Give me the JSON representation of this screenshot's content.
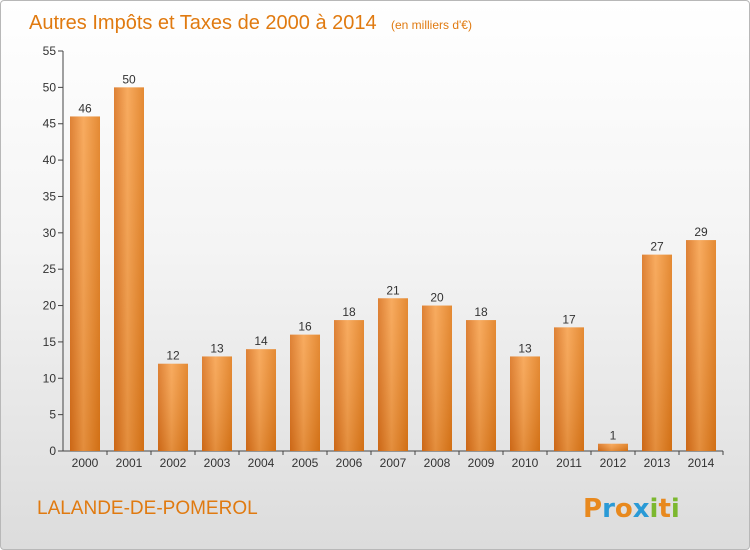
{
  "chart_data": {
    "type": "bar",
    "title": "Autres Impôts et Taxes de 2000 à 2014",
    "subtitle": "(en milliers d'€)",
    "categories": [
      "2000",
      "2001",
      "2002",
      "2003",
      "2004",
      "2005",
      "2006",
      "2007",
      "2008",
      "2009",
      "2010",
      "2011",
      "2012",
      "2013",
      "2014"
    ],
    "values": [
      46,
      50,
      12,
      13,
      14,
      16,
      18,
      21,
      20,
      18,
      13,
      17,
      1,
      27,
      29
    ],
    "data_labels": [
      "46",
      "50",
      "12",
      "13",
      "14",
      "16",
      "18",
      "21",
      "20",
      "18",
      "13",
      "17",
      "1",
      "27",
      "29"
    ],
    "ylim": [
      0,
      55
    ],
    "yticks": [
      0,
      5,
      10,
      15,
      20,
      25,
      30,
      35,
      40,
      45,
      50,
      55
    ],
    "xlabel": "",
    "ylabel": "",
    "grid": false,
    "bar_color": "#f08a24"
  },
  "commune": "LALANDE-DE-POMEROL",
  "logo": {
    "letters": [
      "P",
      "r",
      "o",
      "x",
      "i",
      "t",
      "i"
    ],
    "colors": [
      "#e8891e",
      "#2a9ad6",
      "#e8891e",
      "#2a9ad6",
      "#7cb82f",
      "#e8891e",
      "#7cb82f"
    ]
  },
  "colors": {
    "accent": "#e07a10",
    "axis": "#333333"
  }
}
